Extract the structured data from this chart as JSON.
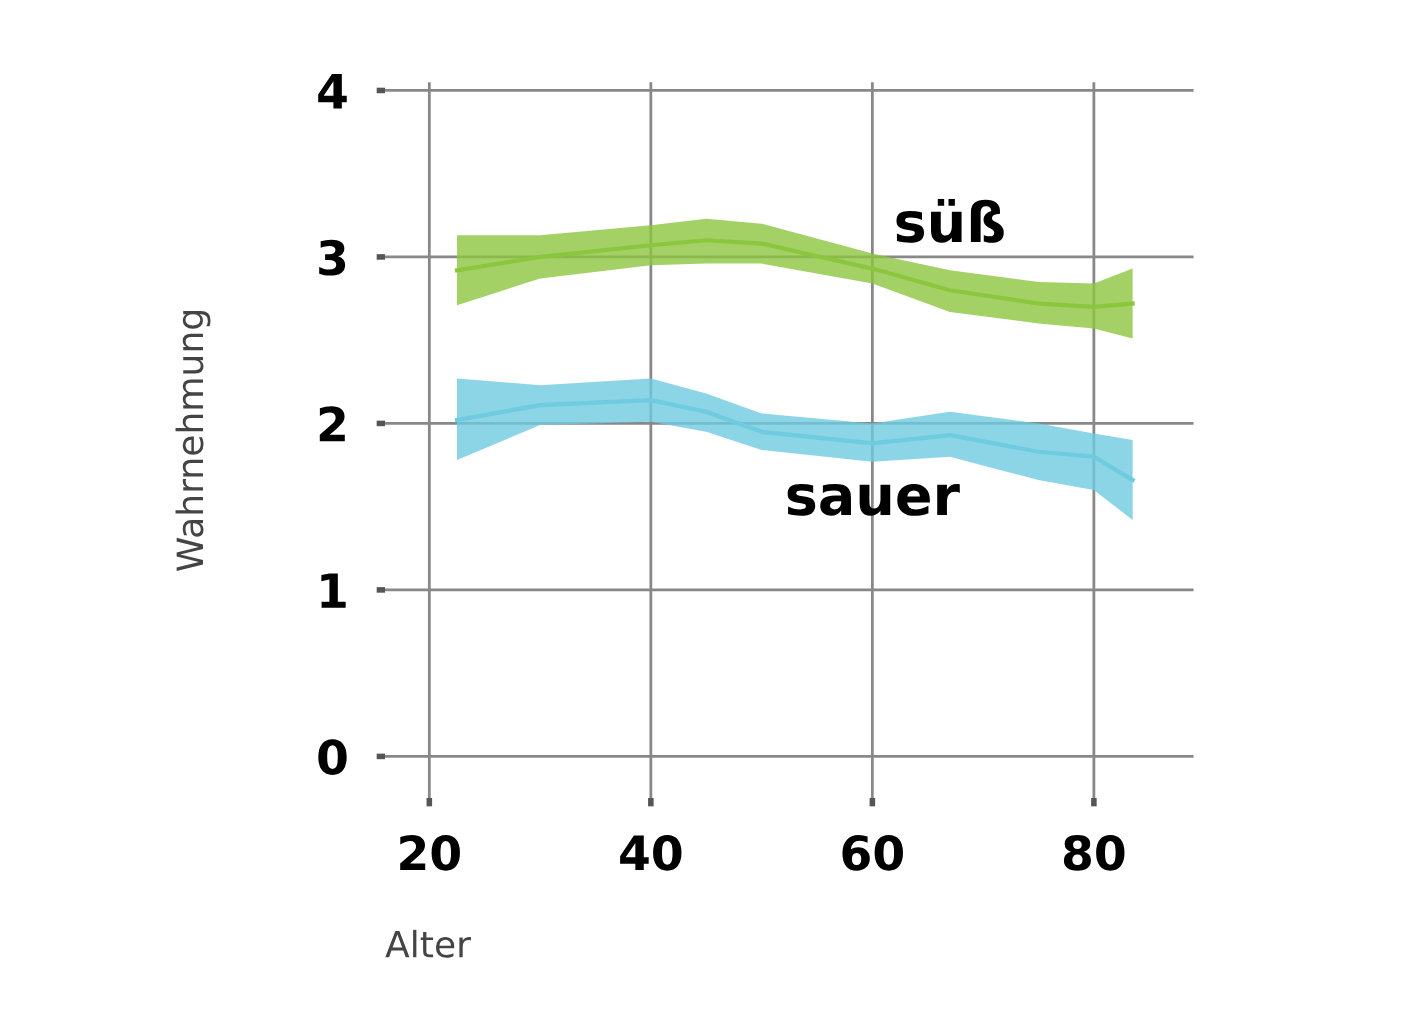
{
  "chart_data": {
    "type": "line",
    "xlabel": "Alter",
    "ylabel": "Wahrnehmung",
    "x": [
      22.5,
      30,
      40,
      45,
      50,
      60,
      67,
      75,
      80,
      83.5
    ],
    "series": [
      {
        "name": "süß",
        "color": "#8cc63f",
        "values": [
          2.92,
          3.0,
          3.07,
          3.1,
          3.08,
          2.93,
          2.8,
          2.72,
          2.7,
          2.72
        ],
        "lower": [
          2.71,
          2.87,
          2.95,
          2.96,
          2.96,
          2.84,
          2.67,
          2.6,
          2.57,
          2.51
        ],
        "upper": [
          3.13,
          3.13,
          3.19,
          3.23,
          3.2,
          3.02,
          2.92,
          2.85,
          2.84,
          2.93
        ]
      },
      {
        "name": "sauer",
        "color": "#6ecbe0",
        "values": [
          2.02,
          2.11,
          2.14,
          2.07,
          1.95,
          1.88,
          1.93,
          1.83,
          1.8,
          1.66
        ],
        "lower": [
          1.78,
          1.99,
          2.01,
          1.95,
          1.84,
          1.77,
          1.8,
          1.66,
          1.6,
          1.42
        ],
        "upper": [
          2.27,
          2.23,
          2.27,
          2.18,
          2.06,
          2.0,
          2.07,
          2.0,
          1.94,
          1.9
        ]
      }
    ],
    "xlim": [
      16,
      89
    ],
    "ylim": [
      -0.25,
      4.05
    ],
    "xticks": [
      20,
      40,
      60,
      80
    ],
    "yticks": [
      0,
      1,
      2,
      3,
      4
    ],
    "grid": true,
    "legend": false
  }
}
